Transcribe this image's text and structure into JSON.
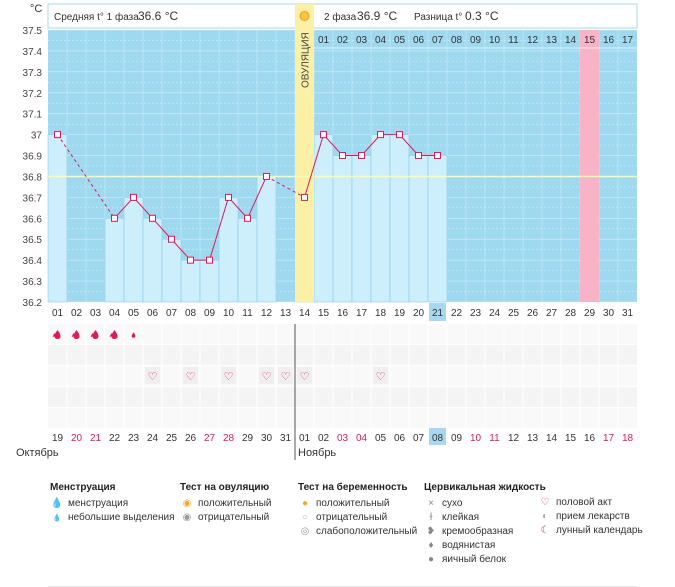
{
  "chart_data": {
    "type": "line",
    "y_unit": "°C",
    "ylim": [
      36.2,
      37.5
    ],
    "y_ticks": [
      "37.5",
      "37.4",
      "37.3",
      "37.2",
      "37.1",
      "37",
      "36.9",
      "36.8",
      "36.7",
      "36.6",
      "36.5",
      "36.4",
      "36.3",
      "36.2"
    ],
    "header": {
      "phase1_label": "Средняя t° 1 фаза",
      "phase1_value": "36.6 °C",
      "phase2_label": "2 фаза",
      "phase2_value": "36.9 °C",
      "diff_label": "Разница t°",
      "diff_value": "0.3 °C"
    },
    "ovulation_label": "ОВУЛЯЦИЯ",
    "ovulation_day_index": 13,
    "coverline": 36.8,
    "cycle_days": [
      "01",
      "02",
      "03",
      "04",
      "05",
      "06",
      "07",
      "08",
      "09",
      "10",
      "11",
      "12",
      "13",
      "14",
      "15",
      "16",
      "17",
      "18",
      "19",
      "20",
      "21",
      "22",
      "23",
      "24",
      "25",
      "26",
      "27",
      "28",
      "29",
      "30",
      "31"
    ],
    "current_day_index": 20,
    "after_ovulation_days": [
      "01",
      "02",
      "03",
      "04",
      "05",
      "06",
      "07",
      "08",
      "09",
      "10",
      "11",
      "12",
      "13",
      "14",
      "15",
      "16",
      "17"
    ],
    "highlight_after_index": 14,
    "temperatures": [
      37.0,
      null,
      null,
      36.6,
      36.7,
      36.6,
      36.5,
      36.4,
      36.4,
      36.7,
      36.6,
      36.8,
      null,
      36.7,
      37.0,
      36.9,
      36.9,
      37.0,
      37.0,
      36.9,
      36.9
    ],
    "menstruation": [
      "heavy",
      "heavy",
      "heavy",
      "heavy",
      "light"
    ],
    "intercourse_days_index": [
      5,
      7,
      9,
      11,
      12,
      13,
      17
    ],
    "calendar_dates": [
      "19",
      "20",
      "21",
      "22",
      "23",
      "24",
      "25",
      "26",
      "27",
      "28",
      "29",
      "30",
      "31",
      "01",
      "02",
      "03",
      "04",
      "05",
      "06",
      "07",
      "08",
      "09",
      "10",
      "11",
      "12",
      "13",
      "14",
      "15",
      "16",
      "17",
      "18"
    ],
    "weekend_dates_index": [
      1,
      2,
      8,
      9,
      15,
      16,
      22,
      23,
      29,
      30
    ],
    "current_date_index": 20,
    "month_labels": [
      {
        "label": "Октябрь",
        "start_index": 0
      },
      {
        "label": "Ноябрь",
        "start_index": 13
      }
    ]
  },
  "legend": {
    "menstruation": {
      "title": "Менструация",
      "items": [
        "менструация",
        "небольшие выделения"
      ]
    },
    "ovulation_test": {
      "title": "Тест на овуляцию",
      "items": [
        "положительный",
        "отрицательный"
      ]
    },
    "pregnancy_test": {
      "title": "Тест на беременность",
      "items": [
        "положительный",
        "отрицательный",
        "слабоположительный"
      ]
    },
    "cervical": {
      "title": "Цервикальная жидкость",
      "items": [
        "сухо",
        "клейкая",
        "кремообразная",
        "водянистая",
        "яичный белок"
      ]
    },
    "other": {
      "items": [
        "половой акт",
        "прием лекарств",
        "лунный календарь"
      ]
    }
  },
  "colors": {
    "grid_bg": "#9fd9f0",
    "bar": "#cdeefb",
    "bar_stroke": "#7fc8e8",
    "ovulation": "#fcefa6",
    "highlight_pink": "#f9b3c6",
    "line": "#e0185c",
    "coverline": "#fffbb0",
    "weekend": "#e0185c",
    "current": "#a8d8ef"
  }
}
